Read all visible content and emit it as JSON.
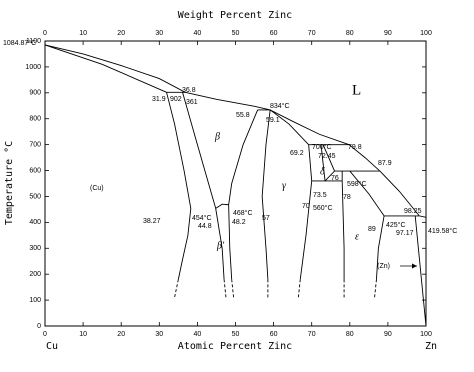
{
  "chart_data": {
    "type": "line",
    "x2label": "Weight Percent Zinc",
    "xlabel": "Atomic Percent Zinc",
    "ylabel": "Temperature °C",
    "left_element": "Cu",
    "right_element": "Zn",
    "xlim": [
      0,
      100
    ],
    "xticks": [
      0,
      10,
      20,
      30,
      40,
      50,
      60,
      70,
      80,
      90,
      100
    ],
    "x2lim": [
      0,
      100
    ],
    "x2ticks": [
      0,
      10,
      20,
      30,
      40,
      50,
      60,
      70,
      80,
      90,
      100
    ],
    "ylim": [
      0,
      1100
    ],
    "yticks": [
      0,
      100,
      200,
      300,
      400,
      500,
      600,
      700,
      800,
      900,
      1000,
      1100
    ],
    "series": [
      {
        "color": "#000000",
        "x": [
          0,
          10,
          20,
          30,
          36.8,
          45,
          55,
          59.1,
          65,
          72,
          79.8,
          84,
          87.9,
          93,
          98.25,
          100
        ],
        "values": [
          1084.87,
          1050,
          1005,
          955,
          902,
          875,
          848,
          834,
          790,
          740,
          700,
          650,
          598,
          520,
          425,
          419.58
        ]
      },
      {
        "color": "#000000",
        "x": [
          0,
          15,
          31.9
        ],
        "values": [
          1084.87,
          1010,
          902
        ]
      },
      {
        "color": "#000000",
        "x": [
          31.9,
          36.8
        ],
        "values": [
          902,
          902
        ]
      },
      {
        "color": "#000000",
        "x": [
          31.9,
          34,
          36.5,
          38.27,
          37.5,
          36,
          35
        ],
        "values": [
          902,
          780,
          600,
          454,
          350,
          250,
          180
        ]
      },
      {
        "color": "#000000",
        "dashed": true,
        "x": [
          35,
          34
        ],
        "values": [
          180,
          110
        ]
      },
      {
        "color": "#000000",
        "x": [
          36.1,
          40,
          44.8,
          46.5,
          47
        ],
        "values": [
          902,
          700,
          454,
          300,
          180
        ]
      },
      {
        "color": "#000000",
        "dashed": true,
        "x": [
          47,
          47.5
        ],
        "values": [
          180,
          110
        ]
      },
      {
        "color": "#000000",
        "x": [
          55.8,
          52,
          49,
          48.2,
          48.5,
          49
        ],
        "values": [
          834,
          700,
          550,
          468,
          300,
          180
        ]
      },
      {
        "color": "#000000",
        "dashed": true,
        "x": [
          49,
          49.5
        ],
        "values": [
          180,
          110
        ]
      },
      {
        "color": "#000000",
        "x": [
          44.8,
          46.5,
          48.2
        ],
        "values": [
          454,
          470,
          468
        ]
      },
      {
        "color": "#000000",
        "x": [
          55.8,
          59.1
        ],
        "values": [
          834,
          834
        ]
      },
      {
        "color": "#000000",
        "x": [
          59.1,
          58,
          57,
          58,
          58.5
        ],
        "values": [
          834,
          700,
          500,
          300,
          180
        ]
      },
      {
        "color": "#000000",
        "dashed": true,
        "x": [
          58.5,
          58.5
        ],
        "values": [
          180,
          110
        ]
      },
      {
        "color": "#000000",
        "x": [
          59.1,
          64,
          69.2,
          70,
          68.5,
          67
        ],
        "values": [
          834,
          780,
          700,
          560,
          350,
          180
        ]
      },
      {
        "color": "#000000",
        "dashed": true,
        "x": [
          67,
          66.5
        ],
        "values": [
          180,
          110
        ]
      },
      {
        "color": "#000000",
        "x": [
          69.2,
          79.8
        ],
        "values": [
          700,
          700
        ]
      },
      {
        "color": "#000000",
        "x": [
          72.45,
          73.5
        ],
        "values": [
          700,
          560
        ]
      },
      {
        "color": "#000000",
        "x": [
          73,
          76,
          73.5
        ],
        "values": [
          700,
          598,
          560
        ]
      },
      {
        "color": "#000000",
        "x": [
          70,
          78
        ],
        "values": [
          560,
          560
        ]
      },
      {
        "color": "#000000",
        "x": [
          76,
          87.9
        ],
        "values": [
          598,
          598
        ]
      },
      {
        "color": "#000000",
        "x": [
          78,
          78,
          78.5,
          78.5
        ],
        "values": [
          598,
          560,
          300,
          180
        ]
      },
      {
        "color": "#000000",
        "dashed": true,
        "x": [
          78.5,
          78.5
        ],
        "values": [
          180,
          110
        ]
      },
      {
        "color": "#000000",
        "x": [
          80,
          85,
          89,
          87.5,
          87
        ],
        "values": [
          598,
          510,
          425,
          300,
          180
        ]
      },
      {
        "color": "#000000",
        "dashed": true,
        "x": [
          87,
          86.5
        ],
        "values": [
          180,
          110
        ]
      },
      {
        "color": "#000000",
        "x": [
          89,
          98.25
        ],
        "values": [
          425,
          425
        ]
      },
      {
        "color": "#000000",
        "x": [
          97.17,
          98,
          99,
          100
        ],
        "values": [
          425,
          300,
          150,
          0
        ]
      }
    ],
    "annotations": [
      "1084.87°C",
      "36.8",
      "31.9",
      "902",
      "361",
      "55.8",
      "834°C",
      "59.1",
      "L",
      "β",
      "69.2",
      "700°C",
      "79.8",
      "72.45",
      "87.9",
      "δ",
      "76",
      "598°C",
      "(Cu)",
      "γ",
      "70",
      "73.5",
      "78",
      "560°C",
      "38.27",
      "454°C",
      "44.8",
      "468°C",
      "48.2",
      "57",
      "β'",
      "89",
      "425°C",
      "98.25",
      "97.17",
      "ε",
      "419.58°C",
      "(Zn)"
    ]
  }
}
